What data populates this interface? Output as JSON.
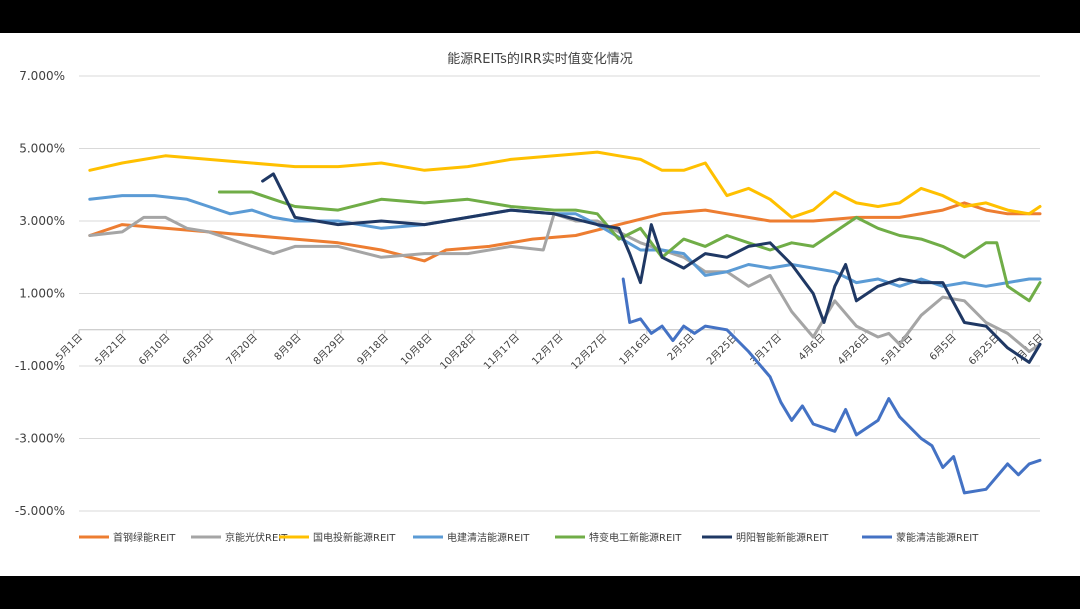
{
  "chart_data": {
    "type": "line",
    "title": "能源REITs的IRR实时值变化情况",
    "xlabel": "",
    "ylabel": "",
    "ylim": [
      -5.0,
      7.0
    ],
    "yticks": [
      "7.000%",
      "5.000%",
      "3.000%",
      "1.000%",
      "-1.000%",
      "-3.000%",
      "-5.000%"
    ],
    "ytick_values": [
      7,
      5,
      3,
      1,
      -1,
      -3,
      -5
    ],
    "x_ticks": [
      "5月1日",
      "5月21日",
      "6月10日",
      "6月30日",
      "7月20日",
      "8月9日",
      "8月29日",
      "9月18日",
      "10月8日",
      "10月28日",
      "11月17日",
      "12月7日",
      "12月27日",
      "1月16日",
      "2月5日",
      "2月25日",
      "3月17日",
      "4月6日",
      "4月26日",
      "5月16日",
      "6月5日",
      "6月25日",
      "7月15日"
    ],
    "x_range": [
      0,
      445
    ],
    "grid": true,
    "legend_position": "bottom",
    "series": [
      {
        "name": "首钢绿能REIT",
        "color": "#ed7d31",
        "x": [
          5,
          20,
          40,
          60,
          80,
          100,
          120,
          140,
          160,
          170,
          190,
          210,
          230,
          250,
          270,
          290,
          300,
          320,
          340,
          360,
          380,
          400,
          410,
          420,
          430,
          445
        ],
        "y": [
          2.6,
          2.9,
          2.8,
          2.7,
          2.6,
          2.5,
          2.4,
          2.2,
          1.9,
          2.2,
          2.3,
          2.5,
          2.6,
          2.9,
          3.2,
          3.3,
          3.2,
          3.0,
          3.0,
          3.1,
          3.1,
          3.3,
          3.5,
          3.3,
          3.2,
          3.2
        ]
      },
      {
        "name": "京能光伏REIT",
        "color": "#a5a5a5",
        "x": [
          5,
          20,
          30,
          40,
          50,
          60,
          70,
          80,
          90,
          100,
          120,
          140,
          160,
          180,
          200,
          215,
          220,
          230,
          240,
          260,
          280,
          290,
          300,
          310,
          320,
          330,
          340,
          350,
          360,
          370,
          375,
          380,
          390,
          400,
          410,
          420,
          430,
          440,
          445
        ],
        "y": [
          2.6,
          2.7,
          3.1,
          3.1,
          2.8,
          2.7,
          2.5,
          2.3,
          2.1,
          2.3,
          2.3,
          2.0,
          2.1,
          2.1,
          2.3,
          2.2,
          3.2,
          3.0,
          3.0,
          2.4,
          2.0,
          1.6,
          1.6,
          1.2,
          1.5,
          0.5,
          -0.2,
          0.8,
          0.1,
          -0.2,
          -0.1,
          -0.4,
          0.4,
          0.9,
          0.8,
          0.2,
          -0.1,
          -0.6,
          -0.4
        ]
      },
      {
        "name": "国电投新能源REIT",
        "color": "#ffc000",
        "x": [
          5,
          20,
          40,
          60,
          80,
          100,
          120,
          140,
          160,
          180,
          200,
          220,
          240,
          250,
          260,
          270,
          280,
          290,
          300,
          310,
          320,
          330,
          340,
          350,
          360,
          370,
          380,
          390,
          400,
          410,
          420,
          430,
          440,
          445
        ],
        "y": [
          4.4,
          4.6,
          4.8,
          4.7,
          4.6,
          4.5,
          4.5,
          4.6,
          4.4,
          4.5,
          4.7,
          4.8,
          4.9,
          4.8,
          4.7,
          4.4,
          4.4,
          4.6,
          3.7,
          3.9,
          3.6,
          3.1,
          3.3,
          3.8,
          3.5,
          3.4,
          3.5,
          3.9,
          3.7,
          3.4,
          3.5,
          3.3,
          3.2,
          3.4
        ]
      },
      {
        "name": "电建清洁能源REIT",
        "color": "#5b9bd5",
        "x": [
          5,
          20,
          35,
          50,
          60,
          70,
          80,
          90,
          100,
          120,
          140,
          160,
          180,
          200,
          220,
          230,
          240,
          260,
          270,
          280,
          290,
          300,
          310,
          320,
          330,
          340,
          350,
          360,
          370,
          380,
          390,
          400,
          410,
          420,
          430,
          440,
          445
        ],
        "y": [
          3.6,
          3.7,
          3.7,
          3.6,
          3.4,
          3.2,
          3.3,
          3.1,
          3.0,
          3.0,
          2.8,
          2.9,
          3.1,
          3.3,
          3.2,
          3.2,
          2.9,
          2.2,
          2.2,
          2.1,
          1.5,
          1.6,
          1.8,
          1.7,
          1.8,
          1.7,
          1.6,
          1.3,
          1.4,
          1.2,
          1.4,
          1.2,
          1.3,
          1.2,
          1.3,
          1.4,
          1.4
        ]
      },
      {
        "name": "特变电工新能源REIT",
        "color": "#70ad47",
        "x": [
          65,
          80,
          90,
          100,
          120,
          140,
          160,
          180,
          200,
          220,
          230,
          240,
          250,
          260,
          270,
          280,
          290,
          300,
          310,
          320,
          330,
          340,
          350,
          360,
          370,
          380,
          390,
          400,
          410,
          420,
          425,
          430,
          440,
          445
        ],
        "y": [
          3.8,
          3.8,
          3.6,
          3.4,
          3.3,
          3.6,
          3.5,
          3.6,
          3.4,
          3.3,
          3.3,
          3.2,
          2.5,
          2.8,
          2.0,
          2.5,
          2.3,
          2.6,
          2.4,
          2.2,
          2.4,
          2.3,
          2.7,
          3.1,
          2.8,
          2.6,
          2.5,
          2.3,
          2.0,
          2.4,
          2.4,
          1.2,
          0.8,
          1.3
        ]
      },
      {
        "name": "明阳智能新能源REIT",
        "color": "#1f3864",
        "x": [
          85,
          90,
          95,
          100,
          120,
          140,
          160,
          180,
          200,
          220,
          240,
          250,
          255,
          260,
          265,
          270,
          280,
          290,
          300,
          310,
          320,
          330,
          340,
          345,
          350,
          355,
          360,
          370,
          380,
          390,
          400,
          410,
          420,
          430,
          440,
          445
        ],
        "y": [
          4.1,
          4.3,
          3.7,
          3.1,
          2.9,
          3.0,
          2.9,
          3.1,
          3.3,
          3.2,
          2.9,
          2.8,
          2.1,
          1.3,
          2.9,
          2.0,
          1.7,
          2.1,
          2.0,
          2.3,
          2.4,
          1.8,
          1.0,
          0.2,
          1.2,
          1.8,
          0.8,
          1.2,
          1.4,
          1.3,
          1.3,
          0.2,
          0.1,
          -0.5,
          -0.9,
          -0.4
        ]
      },
      {
        "name": "蒙能清洁能源REIT",
        "color": "#4472c4",
        "x": [
          252,
          255,
          260,
          265,
          270,
          275,
          280,
          285,
          290,
          300,
          310,
          320,
          325,
          330,
          335,
          340,
          350,
          355,
          360,
          370,
          375,
          380,
          390,
          395,
          400,
          405,
          410,
          420,
          430,
          435,
          440,
          445
        ],
        "y": [
          1.4,
          0.2,
          0.3,
          -0.1,
          0.1,
          -0.3,
          0.1,
          -0.1,
          0.1,
          0.0,
          -0.6,
          -1.3,
          -2.0,
          -2.5,
          -2.1,
          -2.6,
          -2.8,
          -2.2,
          -2.9,
          -2.5,
          -1.9,
          -2.4,
          -3.0,
          -3.2,
          -3.8,
          -3.5,
          -4.5,
          -4.4,
          -3.7,
          -4.0,
          -3.7,
          -3.6
        ]
      }
    ]
  }
}
